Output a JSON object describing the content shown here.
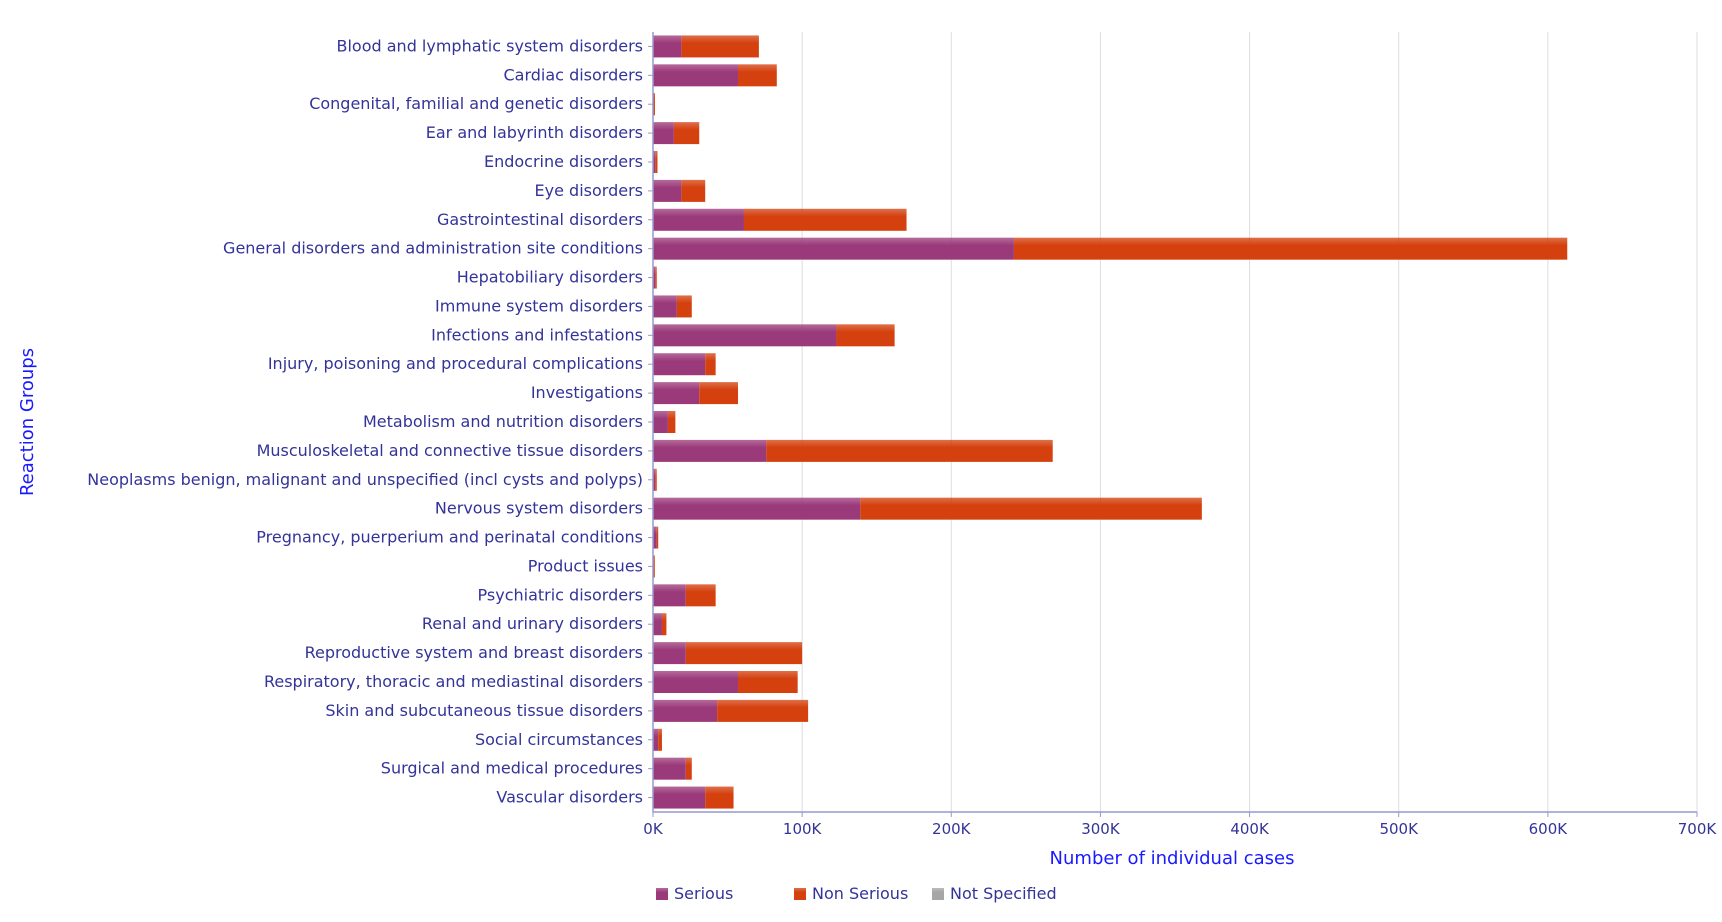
{
  "chart_data": {
    "type": "bar",
    "orientation": "horizontal",
    "stacked": true,
    "xlabel": "Number of individual cases",
    "ylabel": "Reaction Groups",
    "xlim": [
      0,
      700000
    ],
    "x_ticks": [
      0,
      100000,
      200000,
      300000,
      400000,
      500000,
      600000,
      700000
    ],
    "x_tick_labels": [
      "0K",
      "100K",
      "200K",
      "300K",
      "400K",
      "500K",
      "600K",
      "700K"
    ],
    "grid": "vertical",
    "legend_position": "bottom",
    "categories": [
      "Blood and lymphatic system disorders",
      "Cardiac disorders",
      "Congenital, familial and genetic disorders",
      "Ear and labyrinth disorders",
      "Endocrine disorders",
      "Eye disorders",
      "Gastrointestinal disorders",
      "General disorders and administration site conditions",
      "Hepatobiliary disorders",
      "Immune system disorders",
      "Infections and infestations",
      "Injury, poisoning and procedural complications",
      "Investigations",
      "Metabolism and nutrition disorders",
      "Musculoskeletal and connective tissue disorders",
      "Neoplasms benign, malignant and unspecified (incl cysts and polyps)",
      "Nervous system disorders",
      "Pregnancy, puerperium and perinatal conditions",
      "Product issues",
      "Psychiatric disorders",
      "Renal and urinary disorders",
      "Reproductive system and breast disorders",
      "Respiratory, thoracic and mediastinal disorders",
      "Skin and subcutaneous tissue disorders",
      "Social circumstances",
      "Surgical and medical procedures",
      "Vascular disorders"
    ],
    "series": [
      {
        "name": "Serious",
        "color": "#9b3a7a",
        "values": [
          19000,
          57000,
          300,
          14000,
          1500,
          19000,
          61000,
          242000,
          1500,
          16000,
          123000,
          35000,
          31000,
          10000,
          76000,
          1500,
          139000,
          2500,
          200,
          22000,
          6000,
          22000,
          57000,
          43000,
          3500,
          22000,
          35000
        ]
      },
      {
        "name": "Non Serious",
        "color": "#d4400e",
        "values": [
          52000,
          26000,
          200,
          17000,
          1500,
          16000,
          109000,
          371000,
          500,
          10000,
          39000,
          7000,
          26000,
          5000,
          192000,
          500,
          229000,
          500,
          100,
          20000,
          3000,
          78000,
          40000,
          61000,
          2500,
          4000,
          19000
        ]
      },
      {
        "name": "Not Specified",
        "color": "#a6a6a6",
        "values": [
          0,
          0,
          0,
          0,
          0,
          0,
          0,
          0,
          0,
          0,
          0,
          0,
          0,
          0,
          0,
          0,
          0,
          0,
          0,
          0,
          0,
          0,
          0,
          0,
          0,
          0,
          0
        ]
      }
    ]
  }
}
